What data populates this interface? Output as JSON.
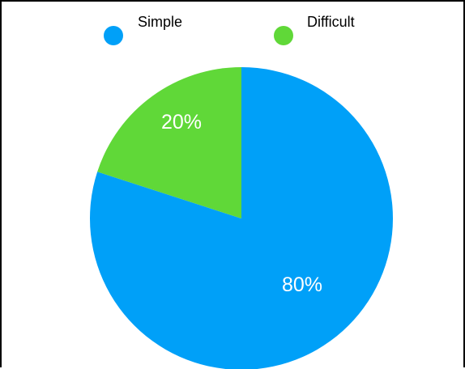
{
  "chart_data": {
    "type": "pie",
    "title": "",
    "legend_position": "top",
    "slices": [
      {
        "label": "Simple",
        "value": 80,
        "display": "80%",
        "color": "#00a0f8"
      },
      {
        "label": "Difficult",
        "value": 20,
        "display": "20%",
        "color": "#60d838"
      }
    ]
  }
}
